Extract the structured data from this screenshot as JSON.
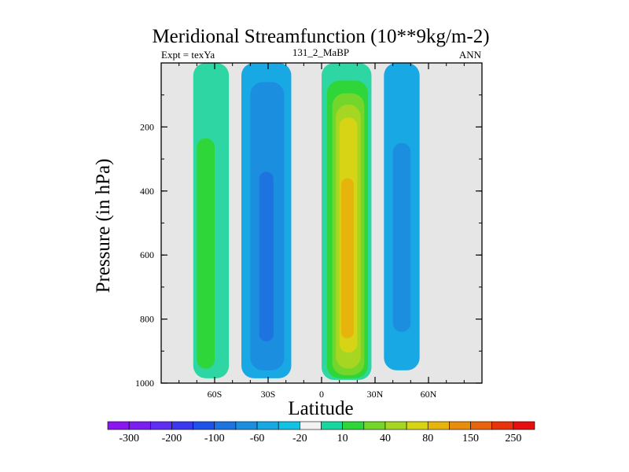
{
  "chart_data": {
    "type": "heatmap",
    "title": "Meridional Streamfunction (10**9kg/m-2)",
    "subtitle_left": "Expt = texYa",
    "subtitle_center": "131_2_MaBP",
    "subtitle_right": "ANN",
    "xlabel": "Latitude",
    "ylabel": "Pressure (in hPa)",
    "xlim": [
      -90,
      90
    ],
    "ylim": [
      1000,
      0
    ],
    "x_ticks": [
      {
        "value": -60,
        "label": "60S"
      },
      {
        "value": -30,
        "label": "30S"
      },
      {
        "value": 0,
        "label": "0"
      },
      {
        "value": 30,
        "label": "30N"
      },
      {
        "value": 60,
        "label": "60N"
      }
    ],
    "y_ticks": [
      {
        "value": 200,
        "label": "200"
      },
      {
        "value": 400,
        "label": "400"
      },
      {
        "value": 600,
        "label": "600"
      },
      {
        "value": 800,
        "label": "800"
      },
      {
        "value": 1000,
        "label": "1000"
      }
    ],
    "background_color": "#e6e6e6",
    "colorbar": {
      "colors": [
        "#8a17ee",
        "#7a1ff0",
        "#5f2ef2",
        "#3b38ee",
        "#1f52e8",
        "#1d74e0",
        "#1c8ee0",
        "#18a8e3",
        "#13c1e5",
        "#f2f2f2",
        "#17d6a0",
        "#2ed63a",
        "#74d62a",
        "#a6d621",
        "#d6d414",
        "#e6b40c",
        "#e88c0b",
        "#e8640c",
        "#e8320c",
        "#e60e0e"
      ],
      "labels": [
        {
          "boundary": 1,
          "text": "-300"
        },
        {
          "boundary": 3,
          "text": "-200"
        },
        {
          "boundary": 5,
          "text": "-100"
        },
        {
          "boundary": 7,
          "text": "-60"
        },
        {
          "boundary": 9,
          "text": "-20"
        },
        {
          "boundary": 11,
          "text": "10"
        },
        {
          "boundary": 13,
          "text": "40"
        },
        {
          "boundary": 15,
          "text": "80"
        },
        {
          "boundary": 17,
          "text": "150"
        },
        {
          "boundary": 19,
          "text": "250"
        }
      ]
    },
    "cells": [
      {
        "name": "sh-sub-outer",
        "color": "#2ed6a3",
        "lat": [
          -72,
          -52
        ],
        "p": [
          0,
          985
        ],
        "level": "10"
      },
      {
        "name": "sh-sub-inner",
        "color": "#2ed63a",
        "lat": [
          -70,
          -60
        ],
        "p": [
          235,
          955
        ],
        "level": "40"
      },
      {
        "name": "sh-mid-outer",
        "color": "#18a8e3",
        "lat": [
          -45,
          -17
        ],
        "p": [
          0,
          985
        ],
        "level": "-20"
      },
      {
        "name": "sh-mid-mid",
        "color": "#1c8ee0",
        "lat": [
          -40,
          -21
        ],
        "p": [
          60,
          960
        ],
        "level": "-60"
      },
      {
        "name": "sh-mid-inner",
        "color": "#1d74e0",
        "lat": [
          -35,
          -27
        ],
        "p": [
          340,
          870
        ],
        "level": "-100"
      },
      {
        "name": "tr-outer",
        "color": "#2ed6a3",
        "lat": [
          0,
          28
        ],
        "p": [
          0,
          990
        ],
        "level": "10"
      },
      {
        "name": "tr-1",
        "color": "#2ed63a",
        "lat": [
          3,
          26
        ],
        "p": [
          55,
          985
        ],
        "level": "40"
      },
      {
        "name": "tr-2",
        "color": "#74d62a",
        "lat": [
          6,
          24
        ],
        "p": [
          95,
          975
        ],
        "level": "80"
      },
      {
        "name": "tr-3",
        "color": "#a6d621",
        "lat": [
          8,
          22
        ],
        "p": [
          130,
          955
        ],
        "level": "80"
      },
      {
        "name": "tr-4",
        "color": "#d6d414",
        "lat": [
          10,
          20
        ],
        "p": [
          170,
          905
        ],
        "level": "80"
      },
      {
        "name": "tr-5",
        "color": "#e6b40c",
        "lat": [
          11,
          18
        ],
        "p": [
          360,
          860
        ],
        "level": "150"
      },
      {
        "name": "nh-mid-outer",
        "color": "#18a8e3",
        "lat": [
          35,
          55
        ],
        "p": [
          0,
          960
        ],
        "level": "-20"
      },
      {
        "name": "nh-mid-inner",
        "color": "#1c8ee0",
        "lat": [
          40,
          50
        ],
        "p": [
          250,
          840
        ],
        "level": "-60"
      }
    ]
  }
}
